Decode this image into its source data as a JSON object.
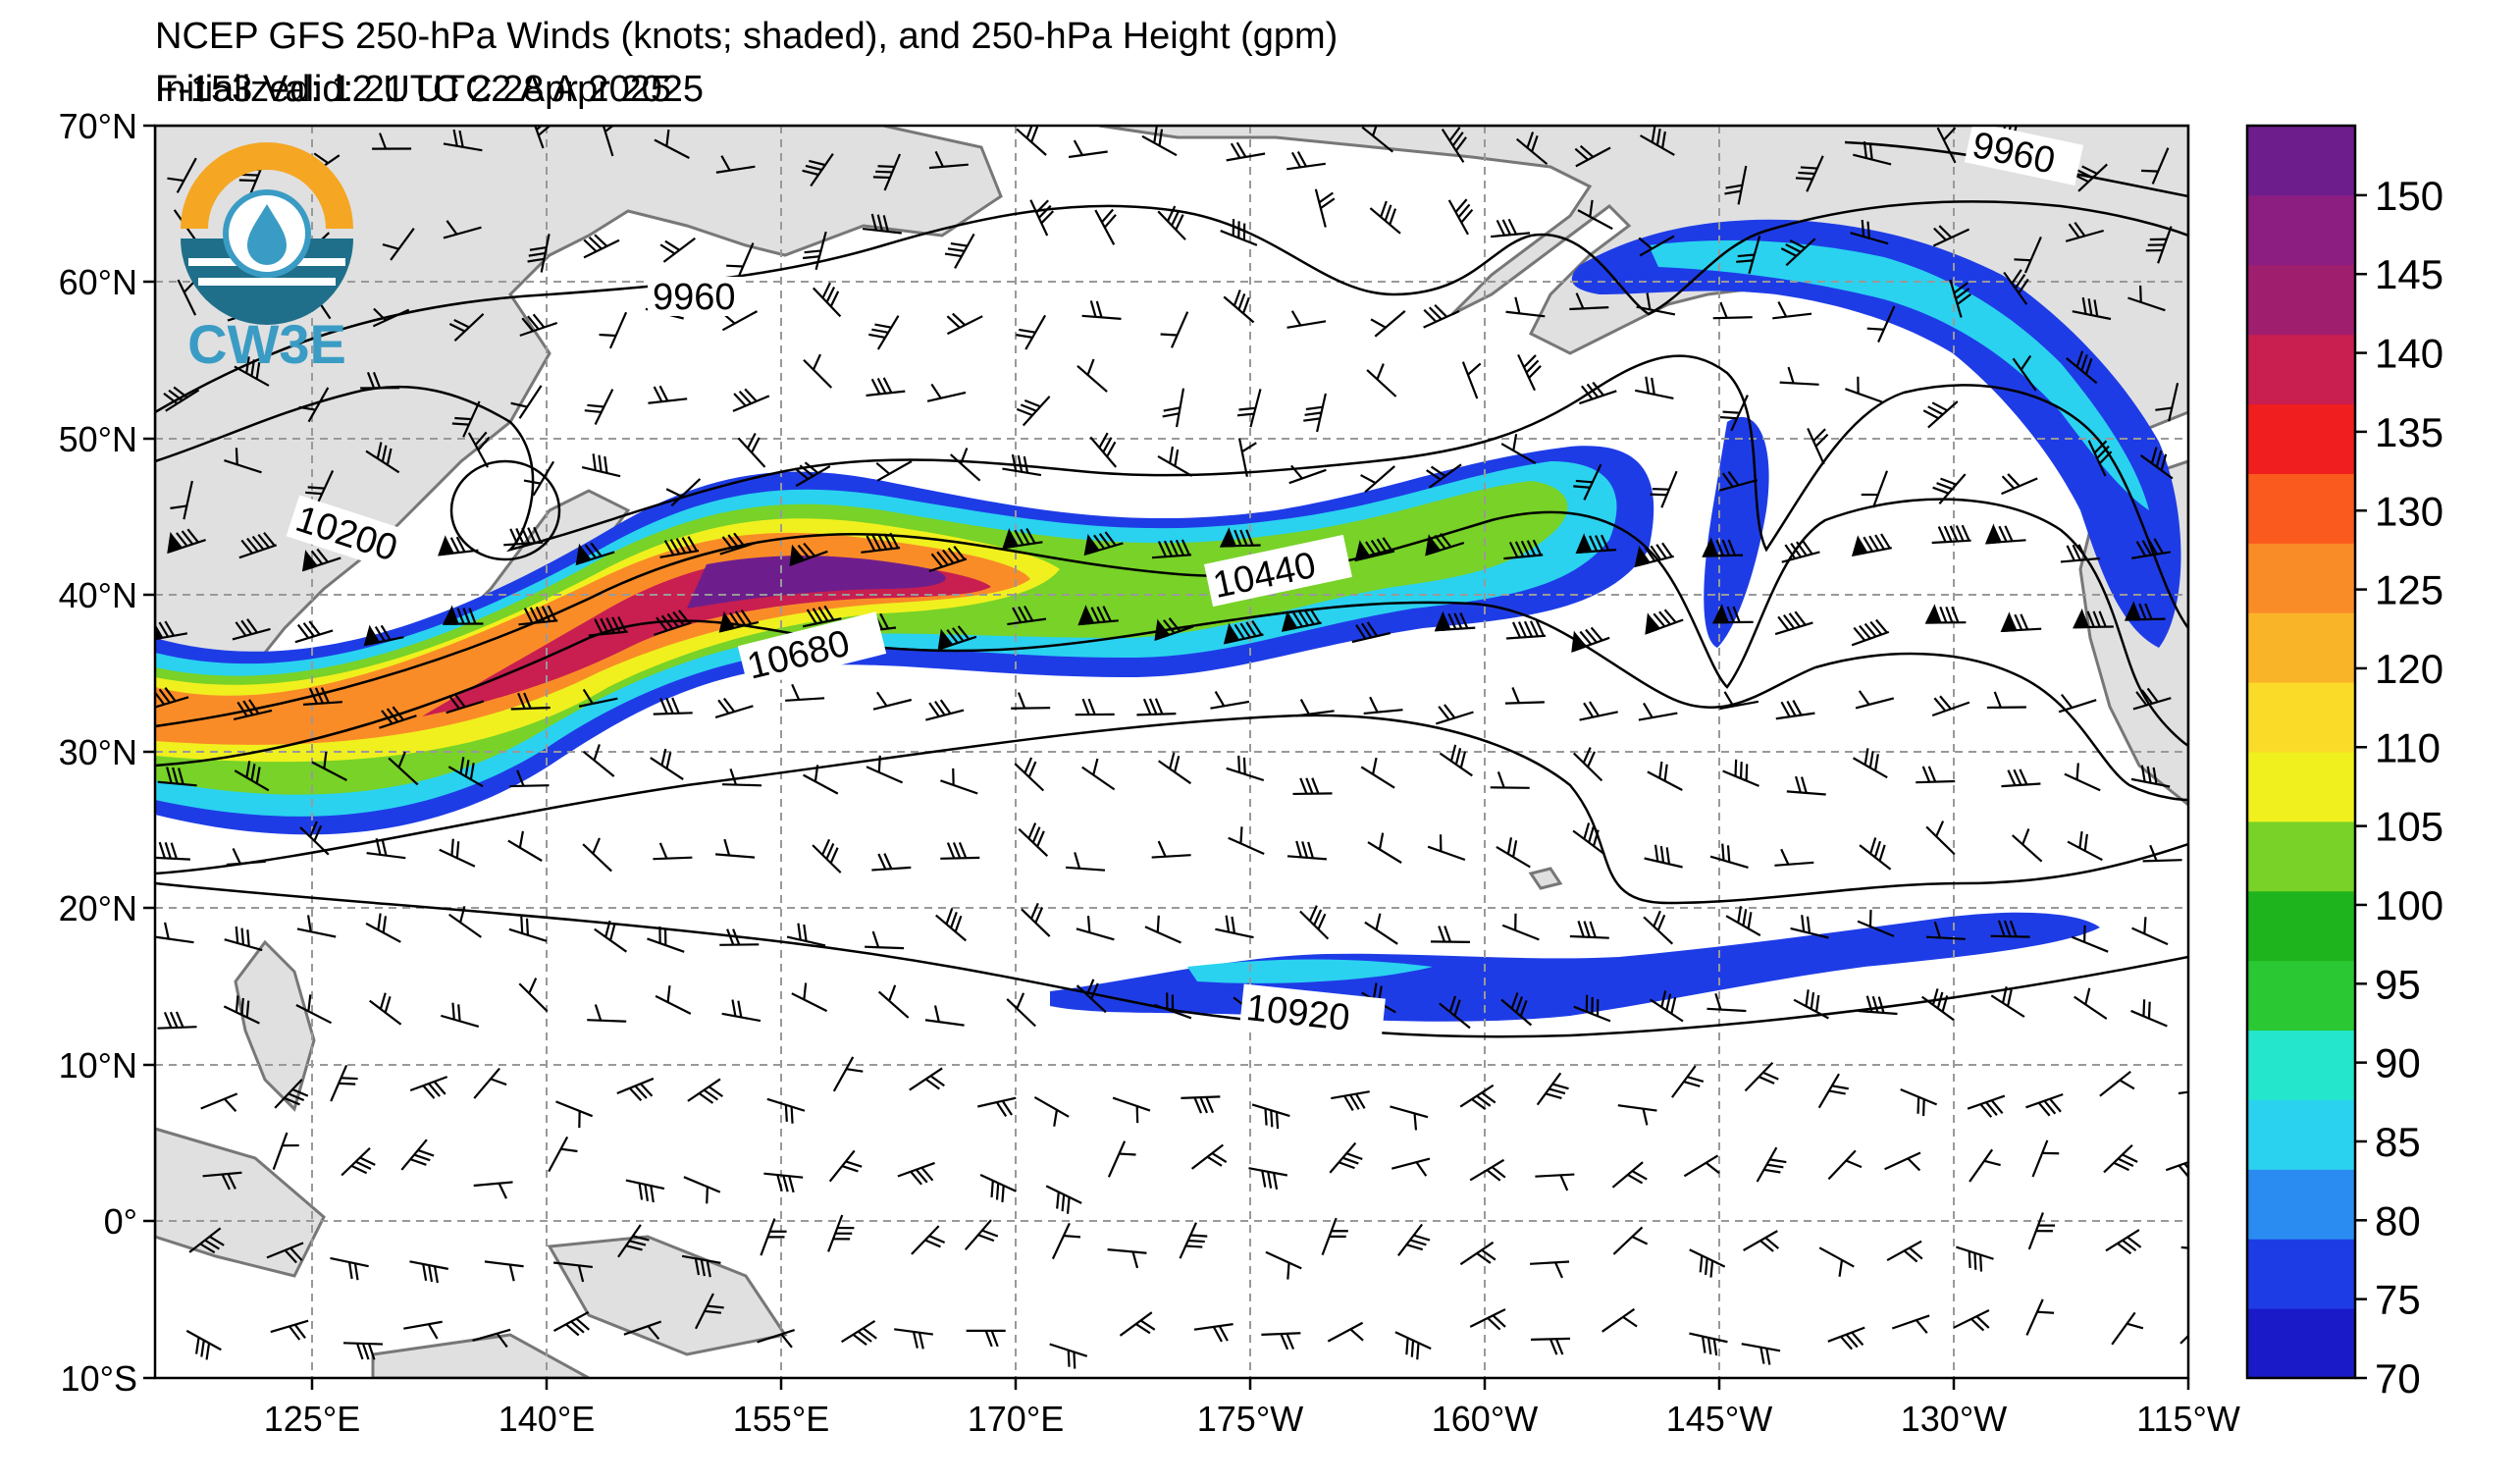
{
  "title": {
    "main": "NCEP GFS 250-hPa Winds (knots; shaded), and 250-hPa Height (gpm)",
    "initialized": "Initialized: 12 UTC 22 Apr 2025",
    "valid": "F-153  Valid: 21 UTC 28 Apr 2025"
  },
  "logo": {
    "text": "CW3E",
    "icon": "cw3e-water-drop-logo"
  },
  "axes": {
    "lat_labels": [
      "70°N",
      "60°N",
      "50°N",
      "40°N",
      "30°N",
      "20°N",
      "10°N",
      "0°",
      "10°S"
    ],
    "lon_labels": [
      "125°E",
      "140°E",
      "155°E",
      "170°E",
      "175°W",
      "160°W",
      "145°W",
      "130°W",
      "115°W"
    ]
  },
  "contour_labels": [
    "9960",
    "9960",
    "10200",
    "10440",
    "10680",
    "10920"
  ],
  "colorbar": {
    "ticks": [
      "70",
      "75",
      "80",
      "85",
      "90",
      "95",
      "100",
      "105",
      "110",
      "120",
      "125",
      "130",
      "135",
      "140",
      "145",
      "150"
    ],
    "colors": [
      "#1a1ac8",
      "#1e3ce6",
      "#2a8cf0",
      "#2ad2f0",
      "#24e6cc",
      "#2ac832",
      "#1eb41e",
      "#78d228",
      "#f0f01e",
      "#fadc28",
      "#fab428",
      "#fa8c28",
      "#fa5a1e",
      "#f01e1e",
      "#c81e50",
      "#a01e6e",
      "#8c1e82",
      "#6e1e8c"
    ]
  },
  "map": {
    "land_color": "#e0e0e0",
    "ocean_color": "#ffffff",
    "grid": true,
    "contour_color": "#000000"
  }
}
